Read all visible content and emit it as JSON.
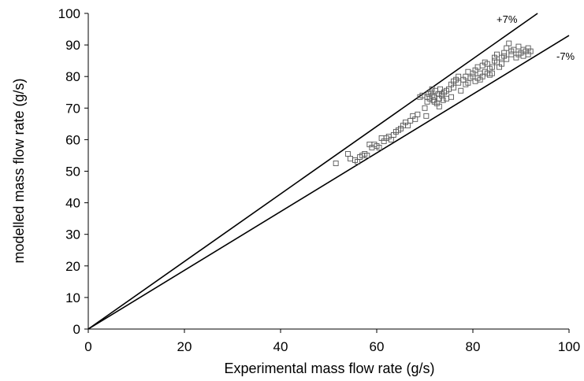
{
  "chart_data": {
    "type": "scatter",
    "title": "",
    "xlabel": "Experimental mass flow rate (g/s)",
    "ylabel": "modelled mass flow rate (g/s)",
    "xlim": [
      0,
      100
    ],
    "ylim": [
      0,
      100
    ],
    "xticks": [
      "0",
      "20",
      "40",
      "60",
      "80",
      "100"
    ],
    "yticks": [
      "0",
      "10",
      "20",
      "30",
      "40",
      "50",
      "60",
      "70",
      "80",
      "90",
      "100"
    ],
    "grid": false,
    "legend": "none",
    "marker_color": "#555555",
    "line_color": "#000000",
    "reference_lines": [
      {
        "label": "+7%",
        "slope": 1.07
      },
      {
        "label": "-7%",
        "slope": 0.93
      }
    ],
    "series": [
      {
        "points": [
          [
            51.5,
            52.5
          ],
          [
            54.0,
            55.5
          ],
          [
            54.5,
            54.0
          ],
          [
            55.5,
            53.5
          ],
          [
            56.0,
            53.0
          ],
          [
            56.5,
            54.5
          ],
          [
            57.0,
            55.0
          ],
          [
            57.5,
            55.5
          ],
          [
            58.0,
            55.0
          ],
          [
            58.5,
            58.5
          ],
          [
            59.0,
            57.5
          ],
          [
            59.5,
            58.5
          ],
          [
            60.0,
            58.0
          ],
          [
            60.5,
            57.5
          ],
          [
            61.0,
            60.5
          ],
          [
            61.5,
            59.5
          ],
          [
            62.0,
            60.5
          ],
          [
            62.5,
            61.0
          ],
          [
            63.0,
            60.0
          ],
          [
            63.5,
            61.5
          ],
          [
            64.0,
            62.5
          ],
          [
            64.5,
            63.0
          ],
          [
            65.0,
            63.5
          ],
          [
            65.5,
            64.5
          ],
          [
            66.0,
            65.5
          ],
          [
            66.5,
            64.5
          ],
          [
            67.0,
            66.0
          ],
          [
            67.5,
            67.5
          ],
          [
            68.0,
            66.5
          ],
          [
            68.5,
            68.0
          ],
          [
            69.0,
            73.5
          ],
          [
            69.5,
            74.0
          ],
          [
            70.0,
            70.0
          ],
          [
            70.3,
            67.5
          ],
          [
            70.5,
            72.0
          ],
          [
            70.8,
            74.5
          ],
          [
            71.0,
            73.0
          ],
          [
            71.2,
            75.0
          ],
          [
            71.5,
            74.0
          ],
          [
            71.8,
            72.5
          ],
          [
            72.0,
            73.5
          ],
          [
            72.2,
            75.5
          ],
          [
            72.5,
            71.5
          ],
          [
            72.8,
            74.5
          ],
          [
            73.0,
            73.0
          ],
          [
            73.2,
            76.0
          ],
          [
            73.5,
            74.0
          ],
          [
            73.8,
            72.5
          ],
          [
            74.0,
            75.0
          ],
          [
            74.5,
            75.5
          ],
          [
            75.0,
            76.0
          ],
          [
            75.5,
            77.5
          ],
          [
            76.0,
            78.5
          ],
          [
            76.5,
            79.0
          ],
          [
            77.0,
            78.0
          ],
          [
            77.5,
            75.5
          ],
          [
            78.0,
            79.0
          ],
          [
            78.5,
            80.0
          ],
          [
            79.0,
            81.5
          ],
          [
            79.5,
            79.5
          ],
          [
            80.0,
            80.0
          ],
          [
            80.5,
            82.0
          ],
          [
            81.0,
            79.5
          ],
          [
            81.5,
            81.0
          ],
          [
            82.0,
            83.5
          ],
          [
            82.5,
            81.5
          ],
          [
            83.0,
            84.0
          ],
          [
            83.5,
            82.5
          ],
          [
            84.0,
            83.0
          ],
          [
            84.5,
            85.0
          ],
          [
            85.0,
            84.5
          ],
          [
            85.5,
            83.0
          ],
          [
            86.0,
            86.0
          ],
          [
            86.5,
            87.5
          ],
          [
            87.0,
            85.5
          ],
          [
            87.5,
            90.5
          ],
          [
            88.0,
            87.0
          ],
          [
            88.5,
            88.5
          ],
          [
            89.0,
            86.0
          ],
          [
            89.5,
            89.5
          ],
          [
            90.0,
            87.5
          ],
          [
            90.5,
            86.5
          ],
          [
            91.0,
            88.0
          ],
          [
            91.5,
            89.0
          ],
          [
            92.0,
            88.0
          ],
          [
            85.0,
            87.0
          ],
          [
            86.0,
            84.0
          ],
          [
            83.0,
            81.0
          ],
          [
            82.0,
            80.0
          ],
          [
            80.0,
            81.0
          ],
          [
            78.5,
            77.5
          ],
          [
            76.0,
            76.5
          ],
          [
            74.5,
            73.0
          ],
          [
            73.5,
            74.5
          ],
          [
            71.5,
            76.0
          ],
          [
            70.5,
            73.5
          ],
          [
            72.0,
            72.0
          ],
          [
            73.0,
            70.5
          ],
          [
            75.5,
            73.5
          ],
          [
            77.0,
            80.0
          ],
          [
            79.0,
            78.0
          ],
          [
            81.0,
            83.0
          ],
          [
            84.0,
            81.0
          ],
          [
            86.5,
            86.5
          ],
          [
            88.0,
            88.0
          ],
          [
            89.5,
            87.0
          ],
          [
            87.0,
            89.0
          ],
          [
            90.5,
            88.5
          ],
          [
            91.5,
            87.0
          ],
          [
            84.5,
            86.0
          ],
          [
            82.5,
            84.5
          ],
          [
            81.5,
            79.0
          ],
          [
            80.5,
            78.5
          ],
          [
            83.5,
            80.5
          ]
        ]
      }
    ]
  }
}
